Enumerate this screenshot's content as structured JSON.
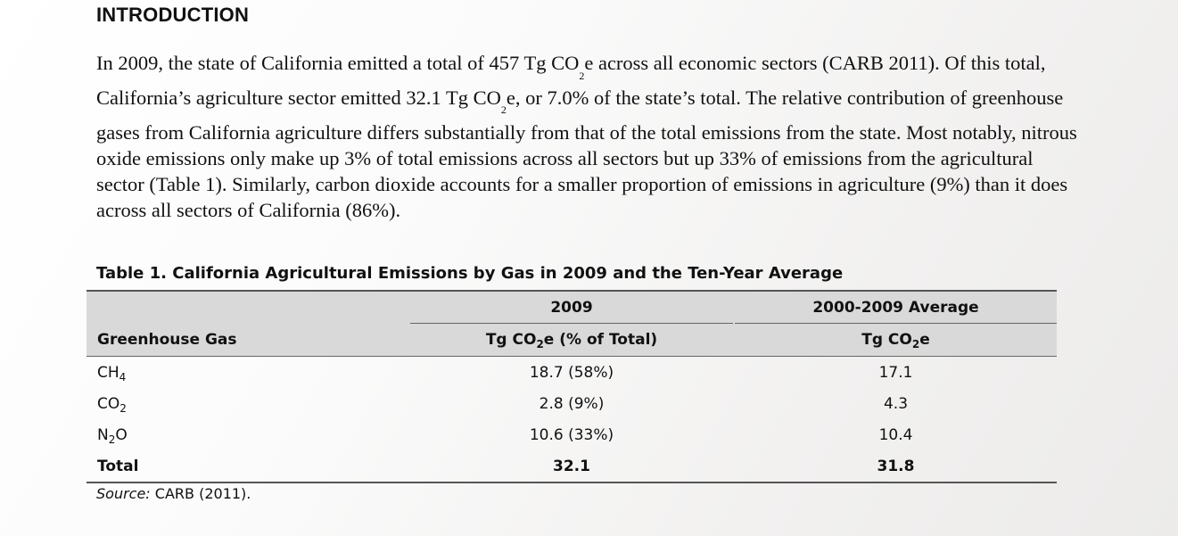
{
  "heading": "INTRODUCTION",
  "paragraph": {
    "p1": "In 2009, the state of California emitted a total of 457 Tg CO",
    "p1_sub": "2",
    "p2": "e across all economic sectors (CARB 2011). Of this total, California’s agriculture sector emitted 32.1 Tg CO",
    "p2_sub": "2",
    "p3": "e, or 7.0% of the state’s total. The relative contribution of greenhouse gases from California agriculture differs substantially from that of the total emissions from the state. Most notably, nitrous oxide emissions only make up 3% of total emissions across all sectors but up 33% of emissions from the agricultural sector (Table 1). Similarly, carbon dioxide accounts for a smaller proportion of emissions in agriculture (9%) than it does across all sectors of California (86%)."
  },
  "table": {
    "caption": "Table 1. California Agricultural Emissions by Gas in 2009 and the Ten-Year Average",
    "group_headers": {
      "col1": "2009",
      "col2": "2000-2009 Average"
    },
    "column_headers": {
      "gas": "Greenhouse Gas",
      "col1_pre": "Tg CO",
      "col1_sub": "2",
      "col1_post": "e (% of Total)",
      "col2_pre": "Tg CO",
      "col2_sub": "2",
      "col2_post": "e"
    },
    "rows": [
      {
        "gas_pre": "CH",
        "gas_sub": "4",
        "gas_post": "",
        "y2009": "18.7 (58%)",
        "avg": "17.1"
      },
      {
        "gas_pre": "CO",
        "gas_sub": "2",
        "gas_post": "",
        "y2009": "2.8 (9%)",
        "avg": "4.3"
      },
      {
        "gas_pre": "N",
        "gas_sub": "2",
        "gas_post": "O",
        "y2009": "10.6 (33%)",
        "avg": "10.4"
      }
    ],
    "total": {
      "label": "Total",
      "y2009": "32.1",
      "avg": "31.8"
    }
  },
  "source": {
    "label": "Source:",
    "text": " CARB (2011)."
  }
}
